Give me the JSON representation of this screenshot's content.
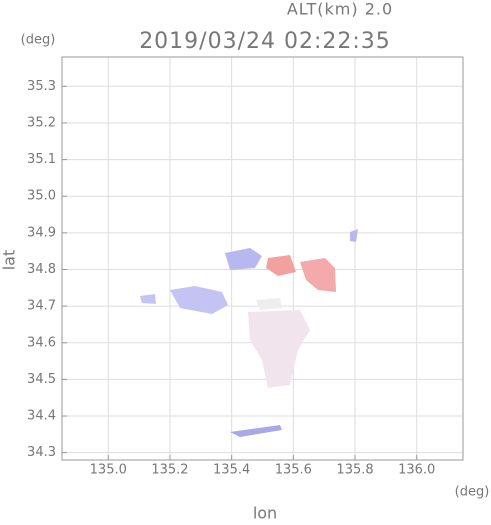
{
  "chart_data": {
    "type": "map",
    "title": "2019/03/24 02:22:35",
    "subtitle": "ALT(km) 2.0",
    "x_label": "lon",
    "y_label": "lat",
    "x_unit": "(deg)",
    "y_unit": "(deg)",
    "xlim": [
      134.85,
      136.15
    ],
    "ylim": [
      34.28,
      35.38
    ],
    "xticks": [
      {
        "value": 135,
        "label": "135.0"
      },
      135.2,
      135.4,
      135.6,
      135.8,
      {
        "value": 136,
        "label": "136.0"
      }
    ],
    "yticks": [
      34.3,
      34.4,
      34.5,
      34.6,
      34.7,
      34.8,
      34.9,
      {
        "value": 35,
        "label": "35.0"
      },
      35.1,
      35.2,
      35.3
    ],
    "grid": true
  }
}
